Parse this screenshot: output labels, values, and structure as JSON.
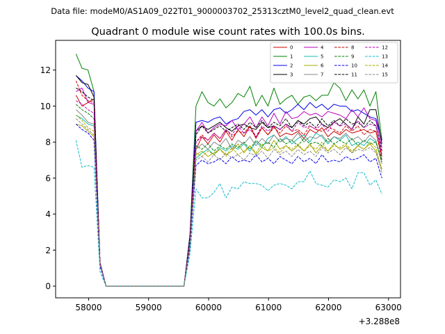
{
  "figure": {
    "suptitle": "Data file: modeM0/AS1A09_022T01_9000003702_25313cztM0_level2_quad_clean.evt",
    "title": "Quadrant 0 module wise count rates with 100.0s bins.",
    "offset_label": "+3.288e8"
  },
  "chart_data": {
    "type": "line",
    "title": "Quadrant 0 module wise count rates with 100.0s bins.",
    "xlabel": "",
    "ylabel": "",
    "x_offset": 328800000,
    "xlim": [
      57450,
      63200
    ],
    "ylim": [
      -0.65,
      13.65
    ],
    "xticks": [
      58000,
      59000,
      60000,
      61000,
      62000,
      63000
    ],
    "yticks": [
      0,
      2,
      4,
      6,
      8,
      10,
      12
    ],
    "grid": false,
    "legend_position": "top-right",
    "x": [
      57790,
      57890,
      57990,
      58090,
      58190,
      58290,
      59590,
      59690,
      59790,
      59890,
      59990,
      60090,
      60190,
      60290,
      60390,
      60490,
      60590,
      60690,
      60790,
      60890,
      60990,
      61090,
      61190,
      61290,
      61390,
      61490,
      61590,
      61690,
      61790,
      61890,
      61990,
      62090,
      62190,
      62290,
      62390,
      62490,
      62590,
      62690,
      62790,
      62890
    ],
    "series": [
      {
        "name": "0",
        "color": "#cc0000",
        "dashed": false,
        "values": [
          10.6,
          10.0,
          10.2,
          10.4,
          1.3,
          0,
          0,
          2.4,
          7.6,
          8.3,
          7.9,
          8.4,
          8.0,
          8.6,
          8.1,
          8.7,
          8.3,
          8.9,
          8.2,
          8.8,
          8.4,
          8.9,
          8.3,
          8.5,
          8.4,
          8.6,
          8.2,
          8.7,
          8.5,
          8.8,
          8.3,
          8.6,
          8.4,
          8.7,
          8.5,
          8.6,
          8.7,
          8.5,
          8.6,
          7.2
        ]
      },
      {
        "name": "1",
        "color": "#008000",
        "dashed": false,
        "values": [
          12.9,
          12.1,
          12.0,
          10.8,
          1.3,
          0,
          0,
          2.9,
          10.0,
          10.8,
          10.2,
          10.0,
          10.4,
          9.9,
          10.2,
          10.7,
          10.5,
          11.1,
          10.0,
          10.6,
          10.0,
          11.0,
          10.1,
          10.4,
          10.6,
          10.1,
          10.5,
          10.6,
          10.3,
          10.6,
          10.6,
          11.3,
          11.0,
          10.3,
          10.9,
          10.4,
          10.9,
          10.0,
          10.8,
          8.1
        ]
      },
      {
        "name": "2",
        "color": "#0000ee",
        "dashed": false,
        "values": [
          11.7,
          11.4,
          11.0,
          10.8,
          1.3,
          0,
          0,
          2.8,
          9.1,
          9.2,
          9.1,
          9.3,
          9.4,
          9.0,
          9.2,
          9.3,
          9.7,
          9.8,
          9.5,
          9.8,
          9.4,
          9.8,
          9.9,
          9.6,
          9.8,
          10.1,
          9.8,
          10.2,
          9.9,
          10.1,
          9.8,
          10.1,
          10.0,
          10.0,
          9.7,
          9.8,
          9.6,
          9.4,
          9.3,
          8.1
        ]
      },
      {
        "name": "3",
        "color": "#000000",
        "dashed": false,
        "values": [
          11.7,
          11.3,
          11.2,
          10.5,
          1.3,
          0,
          0,
          2.6,
          8.6,
          8.9,
          8.7,
          8.9,
          9.1,
          8.8,
          8.6,
          8.9,
          9.0,
          8.8,
          8.7,
          9.1,
          8.8,
          8.9,
          8.7,
          9.0,
          8.8,
          9.2,
          9.0,
          9.3,
          9.4,
          9.0,
          8.8,
          9.1,
          9.3,
          9.0,
          8.7,
          9.4,
          9.0,
          9.8,
          9.8,
          7.9
        ]
      },
      {
        "name": "4",
        "color": "#bb00bb",
        "dashed": false,
        "values": [
          10.8,
          11.0,
          10.2,
          10.1,
          1.3,
          0,
          0,
          2.7,
          8.6,
          9.1,
          8.5,
          8.8,
          9.0,
          8.9,
          9.2,
          8.7,
          9.0,
          9.4,
          8.8,
          9.4,
          8.9,
          9.6,
          9.0,
          9.7,
          9.3,
          9.4,
          9.7,
          9.5,
          9.6,
          9.4,
          9.7,
          9.6,
          9.5,
          9.3,
          9.8,
          9.4,
          9.9,
          9.3,
          9.2,
          7.7
        ]
      },
      {
        "name": "5",
        "color": "#11bbaa",
        "dashed": false,
        "values": [
          9.5,
          9.3,
          9.0,
          8.9,
          1.2,
          0,
          0,
          2.3,
          7.1,
          7.4,
          7.6,
          7.3,
          7.7,
          7.5,
          7.8,
          7.6,
          7.9,
          7.5,
          8.0,
          7.7,
          8.2,
          8.4,
          8.0,
          8.3,
          7.9,
          8.2,
          8.4,
          8.0,
          8.5,
          8.3,
          7.9,
          8.3,
          8.1,
          8.4,
          7.8,
          8.0,
          7.8,
          8.2,
          8.0,
          7.0
        ]
      },
      {
        "name": "6",
        "color": "#aaaa00",
        "dashed": false,
        "values": [
          9.0,
          8.9,
          8.6,
          8.3,
          1.2,
          0,
          0,
          2.2,
          7.3,
          7.5,
          7.2,
          7.4,
          7.6,
          7.3,
          7.5,
          7.9,
          7.4,
          7.8,
          7.3,
          7.7,
          7.5,
          8.1,
          7.6,
          7.8,
          7.5,
          7.8,
          7.5,
          7.9,
          7.4,
          7.8,
          7.5,
          7.9,
          7.6,
          7.8,
          7.4,
          7.8,
          7.6,
          7.9,
          7.5,
          6.5
        ]
      },
      {
        "name": "7",
        "color": "#888888",
        "dashed": false,
        "values": [
          9.8,
          9.5,
          9.1,
          9.0,
          1.2,
          0,
          0,
          2.4,
          7.6,
          7.9,
          7.6,
          8.0,
          7.8,
          8.2,
          7.6,
          8.1,
          7.9,
          8.3,
          7.8,
          8.2,
          7.9,
          8.4,
          8.0,
          8.2,
          8.1,
          8.5,
          8.0,
          8.3,
          8.2,
          8.4,
          8.0,
          8.3,
          8.2,
          8.5,
          8.1,
          8.3,
          8.0,
          8.4,
          8.1,
          6.8
        ]
      },
      {
        "name": "8",
        "color": "#cc0000",
        "dashed": true,
        "values": [
          11.4,
          10.6,
          10.3,
          10.2,
          1.3,
          0,
          0,
          2.5,
          8.0,
          8.4,
          8.1,
          8.5,
          8.2,
          8.7,
          8.3,
          8.6,
          8.5,
          8.9,
          8.3,
          8.8,
          8.4,
          8.8,
          8.5,
          8.9,
          8.6,
          8.7,
          8.4,
          8.9,
          8.7,
          8.6,
          8.8,
          8.7,
          8.5,
          8.9,
          8.6,
          8.9,
          8.4,
          8.7,
          8.6,
          7.0
        ]
      },
      {
        "name": "9",
        "color": "#008000",
        "dashed": true,
        "values": [
          10.1,
          9.8,
          9.6,
          9.3,
          1.2,
          0,
          0,
          2.4,
          7.8,
          7.6,
          7.9,
          7.5,
          7.8,
          7.6,
          7.9,
          7.7,
          8.0,
          7.6,
          8.1,
          7.8,
          8.0,
          7.7,
          8.2,
          7.9,
          8.1,
          7.8,
          8.2,
          7.9,
          8.0,
          7.8,
          8.2,
          7.9,
          8.1,
          7.9,
          8.2,
          7.8,
          8.1,
          7.9,
          8.0,
          6.9
        ]
      },
      {
        "name": "10",
        "color": "#0000ee",
        "dashed": true,
        "values": [
          9.0,
          8.7,
          8.5,
          8.1,
          1.1,
          0,
          0,
          2.1,
          6.7,
          7.0,
          6.8,
          6.9,
          7.1,
          6.8,
          7.2,
          6.9,
          7.0,
          6.9,
          7.3,
          6.9,
          7.1,
          6.8,
          7.2,
          7.0,
          6.8,
          7.2,
          6.9,
          7.1,
          6.8,
          7.3,
          6.9,
          7.0,
          6.9,
          7.2,
          7.0,
          7.1,
          7.3,
          6.9,
          7.1,
          6.0
        ]
      },
      {
        "name": "11",
        "color": "#000000",
        "dashed": true,
        "values": [
          11.0,
          10.8,
          10.5,
          10.3,
          1.3,
          0,
          0,
          2.7,
          8.4,
          8.9,
          8.5,
          8.7,
          8.9,
          8.6,
          8.8,
          9.0,
          8.7,
          9.1,
          8.8,
          9.2,
          8.8,
          9.1,
          8.9,
          9.3,
          8.8,
          9.2,
          8.9,
          9.1,
          8.8,
          9.3,
          8.9,
          9.2,
          8.9,
          9.3,
          9.0,
          9.1,
          8.8,
          9.2,
          8.9,
          7.5
        ]
      },
      {
        "name": "12",
        "color": "#bb00bb",
        "dashed": true,
        "values": [
          10.3,
          10.1,
          9.8,
          9.6,
          1.3,
          0,
          0,
          2.5,
          8.0,
          8.3,
          8.1,
          8.5,
          8.2,
          8.7,
          8.4,
          8.9,
          8.5,
          8.7,
          8.3,
          8.9,
          8.6,
          8.9,
          8.7,
          9.0,
          8.6,
          9.1,
          8.8,
          8.9,
          8.7,
          9.0,
          8.6,
          9.1,
          8.9,
          9.0,
          8.7,
          9.2,
          8.8,
          9.0,
          8.9,
          7.3
        ]
      },
      {
        "name": "13",
        "color": "#11bbcc",
        "dashed": true,
        "values": [
          8.1,
          6.6,
          6.7,
          6.6,
          0.8,
          0,
          0,
          1.8,
          5.4,
          4.9,
          4.9,
          5.2,
          5.7,
          4.9,
          5.5,
          5.4,
          5.8,
          5.7,
          5.7,
          5.6,
          5.3,
          5.6,
          5.7,
          5.6,
          5.4,
          5.8,
          5.8,
          6.4,
          5.7,
          5.6,
          5.5,
          5.9,
          5.8,
          6.0,
          5.4,
          6.3,
          6.3,
          5.6,
          5.9,
          5.1
        ]
      },
      {
        "name": "14",
        "color": "#aaaa00",
        "dashed": true,
        "values": [
          9.5,
          9.2,
          8.8,
          8.6,
          1.2,
          0,
          0,
          2.3,
          7.4,
          7.2,
          7.5,
          7.3,
          7.6,
          7.2,
          7.7,
          7.3,
          7.5,
          7.8,
          7.4,
          7.9,
          7.5,
          7.7,
          7.4,
          7.8,
          7.6,
          7.9,
          7.5,
          7.8,
          7.6,
          8.0,
          7.5,
          7.8,
          7.7,
          7.9,
          7.5,
          7.8,
          7.6,
          8.0,
          7.7,
          6.3
        ]
      },
      {
        "name": "15",
        "color": "#888888",
        "dashed": true,
        "values": [
          9.3,
          9.0,
          8.7,
          8.4,
          1.2,
          0,
          0,
          2.2,
          7.0,
          7.2,
          6.9,
          7.3,
          7.0,
          7.4,
          7.1,
          7.3,
          7.0,
          7.4,
          7.2,
          7.5,
          7.1,
          7.6,
          7.3,
          7.5,
          7.2,
          7.6,
          7.3,
          7.5,
          7.2,
          7.7,
          7.4,
          7.6,
          7.3,
          7.7,
          7.4,
          7.6,
          7.5,
          7.7,
          7.4,
          6.4
        ]
      }
    ]
  }
}
